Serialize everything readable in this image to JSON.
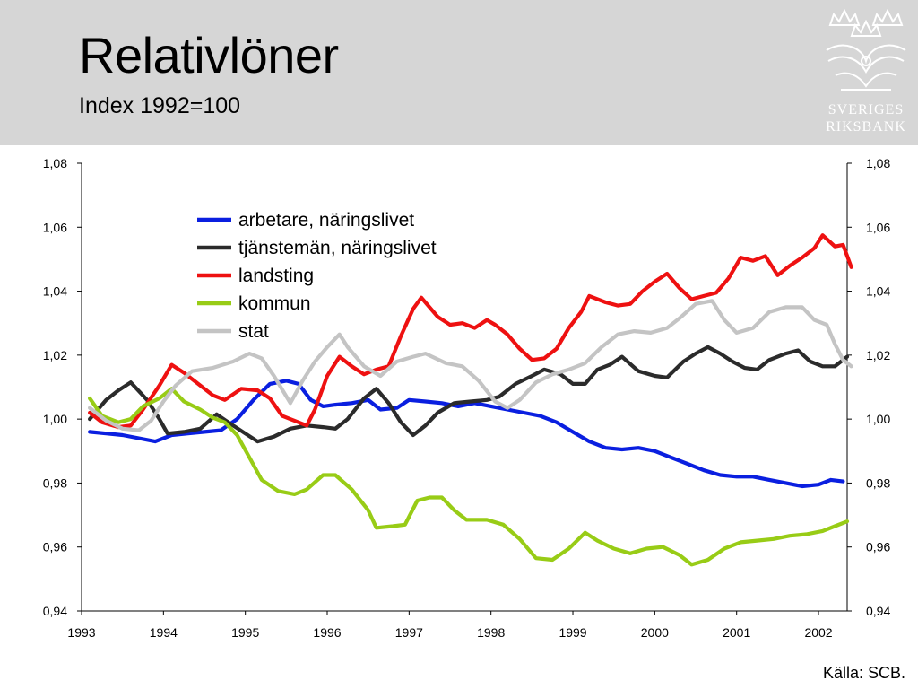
{
  "header": {
    "title": "Relativlöner",
    "subtitle": "Index 1992=100"
  },
  "logo": {
    "icon": "riksbank-crown-emblem-icon",
    "line1": "SVERIGES",
    "line2": "RIKSBANK"
  },
  "source": "Källa: SCB.",
  "colors": {
    "header_bg": "#d6d6d6",
    "blue": "#0a1fe0",
    "dark": "#2b2b2b",
    "red": "#ee1111",
    "green": "#98cc16",
    "grey": "#c4c4c4"
  },
  "chart_data": {
    "type": "line",
    "title": "",
    "xlabel": "",
    "ylabel": "",
    "xlim": [
      1993,
      2002.35
    ],
    "ylim": [
      0.94,
      1.08
    ],
    "x_ticks": [
      "1993",
      "1994",
      "1995",
      "1996",
      "1997",
      "1998",
      "1999",
      "2000",
      "2001",
      "2002"
    ],
    "y_ticks": [
      "0,94",
      "0,96",
      "0,98",
      "1,00",
      "1,02",
      "1,04",
      "1,06",
      "1,08"
    ],
    "dual_y_axis": true,
    "grid": false,
    "legend_position": "top-left",
    "series": [
      {
        "name": "arbetare, näringslivet",
        "color": "#0a1fe0",
        "points": [
          [
            1993.1,
            0.996
          ],
          [
            1993.3,
            0.9955
          ],
          [
            1993.5,
            0.995
          ],
          [
            1993.7,
            0.994
          ],
          [
            1993.9,
            0.993
          ],
          [
            1994.1,
            0.995
          ],
          [
            1994.3,
            0.9955
          ],
          [
            1994.5,
            0.996
          ],
          [
            1994.7,
            0.9965
          ],
          [
            1994.9,
            1.0
          ],
          [
            1995.1,
            1.006
          ],
          [
            1995.3,
            1.011
          ],
          [
            1995.5,
            1.012
          ],
          [
            1995.65,
            1.011
          ],
          [
            1995.8,
            1.006
          ],
          [
            1995.95,
            1.004
          ],
          [
            1996.1,
            1.0045
          ],
          [
            1996.3,
            1.005
          ],
          [
            1996.5,
            1.006
          ],
          [
            1996.65,
            1.003
          ],
          [
            1996.85,
            1.0035
          ],
          [
            1997.0,
            1.006
          ],
          [
            1997.2,
            1.0055
          ],
          [
            1997.4,
            1.005
          ],
          [
            1997.6,
            1.004
          ],
          [
            1997.8,
            1.005
          ],
          [
            1998.0,
            1.004
          ],
          [
            1998.2,
            1.003
          ],
          [
            1998.4,
            1.002
          ],
          [
            1998.6,
            1.001
          ],
          [
            1998.8,
            0.999
          ],
          [
            1999.0,
            0.996
          ],
          [
            1999.2,
            0.993
          ],
          [
            1999.4,
            0.991
          ],
          [
            1999.6,
            0.9905
          ],
          [
            1999.8,
            0.991
          ],
          [
            2000.0,
            0.99
          ],
          [
            2000.2,
            0.988
          ],
          [
            2000.4,
            0.986
          ],
          [
            2000.6,
            0.984
          ],
          [
            2000.8,
            0.9825
          ],
          [
            2001.0,
            0.982
          ],
          [
            2001.2,
            0.982
          ],
          [
            2001.4,
            0.981
          ],
          [
            2001.6,
            0.98
          ],
          [
            2001.8,
            0.979
          ],
          [
            2002.0,
            0.9795
          ],
          [
            2002.15,
            0.981
          ],
          [
            2002.3,
            0.9805
          ]
        ]
      },
      {
        "name": "tjänstemän, näringslivet",
        "color": "#2b2b2b",
        "points": [
          [
            1993.1,
            1.0
          ],
          [
            1993.3,
            1.006
          ],
          [
            1993.45,
            1.009
          ],
          [
            1993.6,
            1.0115
          ],
          [
            1993.8,
            1.006
          ],
          [
            1993.95,
            1.0
          ],
          [
            1994.05,
            0.9955
          ],
          [
            1994.25,
            0.996
          ],
          [
            1994.45,
            0.997
          ],
          [
            1994.65,
            1.0015
          ],
          [
            1994.85,
            0.998
          ],
          [
            1995.0,
            0.9955
          ],
          [
            1995.15,
            0.993
          ],
          [
            1995.35,
            0.9945
          ],
          [
            1995.55,
            0.997
          ],
          [
            1995.75,
            0.998
          ],
          [
            1995.95,
            0.9975
          ],
          [
            1996.1,
            0.997
          ],
          [
            1996.25,
            1.0
          ],
          [
            1996.45,
            1.0065
          ],
          [
            1996.6,
            1.0095
          ],
          [
            1996.75,
            1.005
          ],
          [
            1996.9,
            0.999
          ],
          [
            1997.05,
            0.995
          ],
          [
            1997.2,
            0.998
          ],
          [
            1997.35,
            1.002
          ],
          [
            1997.55,
            1.005
          ],
          [
            1997.75,
            1.0055
          ],
          [
            1997.95,
            1.006
          ],
          [
            1998.1,
            1.007
          ],
          [
            1998.3,
            1.011
          ],
          [
            1998.5,
            1.0135
          ],
          [
            1998.65,
            1.0155
          ],
          [
            1998.85,
            1.014
          ],
          [
            1999.0,
            1.011
          ],
          [
            1999.15,
            1.011
          ],
          [
            1999.3,
            1.0155
          ],
          [
            1999.45,
            1.017
          ],
          [
            1999.6,
            1.0195
          ],
          [
            1999.8,
            1.015
          ],
          [
            2000.0,
            1.0135
          ],
          [
            2000.15,
            1.013
          ],
          [
            2000.35,
            1.018
          ],
          [
            2000.5,
            1.0205
          ],
          [
            2000.65,
            1.0225
          ],
          [
            2000.8,
            1.0205
          ],
          [
            2000.95,
            1.018
          ],
          [
            2001.1,
            1.016
          ],
          [
            2001.25,
            1.0155
          ],
          [
            2001.4,
            1.0185
          ],
          [
            2001.6,
            1.0205
          ],
          [
            2001.75,
            1.0215
          ],
          [
            2001.9,
            1.018
          ],
          [
            2002.05,
            1.0165
          ],
          [
            2002.2,
            1.0165
          ],
          [
            2002.35,
            1.0195
          ]
        ]
      },
      {
        "name": "landsting",
        "color": "#ee1111",
        "points": [
          [
            1993.1,
            1.002
          ],
          [
            1993.25,
            0.999
          ],
          [
            1993.45,
            0.9975
          ],
          [
            1993.6,
            0.998
          ],
          [
            1993.75,
            1.003
          ],
          [
            1993.95,
            1.0105
          ],
          [
            1994.1,
            1.017
          ],
          [
            1994.25,
            1.0145
          ],
          [
            1994.45,
            1.0105
          ],
          [
            1994.6,
            1.0075
          ],
          [
            1994.75,
            1.006
          ],
          [
            1994.95,
            1.0095
          ],
          [
            1995.15,
            1.009
          ],
          [
            1995.3,
            1.0065
          ],
          [
            1995.45,
            1.001
          ],
          [
            1995.6,
            0.9995
          ],
          [
            1995.75,
            0.998
          ],
          [
            1995.85,
            1.003
          ],
          [
            1996.0,
            1.0135
          ],
          [
            1996.15,
            1.0195
          ],
          [
            1996.3,
            1.0165
          ],
          [
            1996.45,
            1.014
          ],
          [
            1996.6,
            1.0155
          ],
          [
            1996.75,
            1.0165
          ],
          [
            1996.9,
            1.026
          ],
          [
            1997.05,
            1.0345
          ],
          [
            1997.15,
            1.038
          ],
          [
            1997.35,
            1.032
          ],
          [
            1997.5,
            1.0295
          ],
          [
            1997.65,
            1.03
          ],
          [
            1997.8,
            1.0285
          ],
          [
            1997.95,
            1.031
          ],
          [
            1998.05,
            1.0295
          ],
          [
            1998.2,
            1.0265
          ],
          [
            1998.35,
            1.022
          ],
          [
            1998.5,
            1.0185
          ],
          [
            1998.65,
            1.019
          ],
          [
            1998.8,
            1.022
          ],
          [
            1998.95,
            1.0285
          ],
          [
            1999.1,
            1.0335
          ],
          [
            1999.2,
            1.0385
          ],
          [
            1999.4,
            1.0365
          ],
          [
            1999.55,
            1.0355
          ],
          [
            1999.7,
            1.036
          ],
          [
            1999.85,
            1.04
          ],
          [
            2000.0,
            1.043
          ],
          [
            2000.15,
            1.0455
          ],
          [
            2000.3,
            1.041
          ],
          [
            2000.45,
            1.0375
          ],
          [
            2000.6,
            1.0385
          ],
          [
            2000.75,
            1.0395
          ],
          [
            2000.9,
            1.044
          ],
          [
            2001.05,
            1.0505
          ],
          [
            2001.2,
            1.0495
          ],
          [
            2001.35,
            1.051
          ],
          [
            2001.5,
            1.045
          ],
          [
            2001.65,
            1.048
          ],
          [
            2001.8,
            1.0505
          ],
          [
            2001.95,
            1.0535
          ],
          [
            2002.05,
            1.0575
          ],
          [
            2002.2,
            1.054
          ],
          [
            2002.3,
            1.0545
          ],
          [
            2002.4,
            1.0475
          ]
        ]
      },
      {
        "name": "kommun",
        "color": "#98cc16",
        "points": [
          [
            1993.1,
            1.0065
          ],
          [
            1993.25,
            1.001
          ],
          [
            1993.45,
            0.999
          ],
          [
            1993.6,
            1.0
          ],
          [
            1993.75,
            1.004
          ],
          [
            1993.95,
            1.0065
          ],
          [
            1994.1,
            1.0095
          ],
          [
            1994.25,
            1.0055
          ],
          [
            1994.45,
            1.003
          ],
          [
            1994.6,
            1.0005
          ],
          [
            1994.75,
            0.999
          ],
          [
            1994.9,
            0.995
          ],
          [
            1995.05,
            0.988
          ],
          [
            1995.2,
            0.981
          ],
          [
            1995.4,
            0.9775
          ],
          [
            1995.6,
            0.9765
          ],
          [
            1995.75,
            0.978
          ],
          [
            1995.95,
            0.9825
          ],
          [
            1996.1,
            0.9825
          ],
          [
            1996.3,
            0.978
          ],
          [
            1996.5,
            0.9715
          ],
          [
            1996.6,
            0.966
          ],
          [
            1996.8,
            0.9665
          ],
          [
            1996.95,
            0.967
          ],
          [
            1997.1,
            0.9745
          ],
          [
            1997.25,
            0.9755
          ],
          [
            1997.4,
            0.9755
          ],
          [
            1997.55,
            0.9715
          ],
          [
            1997.7,
            0.9685
          ],
          [
            1997.95,
            0.9685
          ],
          [
            1998.15,
            0.967
          ],
          [
            1998.35,
            0.9625
          ],
          [
            1998.55,
            0.9565
          ],
          [
            1998.75,
            0.956
          ],
          [
            1998.95,
            0.9595
          ],
          [
            1999.15,
            0.9645
          ],
          [
            1999.3,
            0.962
          ],
          [
            1999.5,
            0.9595
          ],
          [
            1999.7,
            0.958
          ],
          [
            1999.9,
            0.9595
          ],
          [
            2000.1,
            0.96
          ],
          [
            2000.3,
            0.9575
          ],
          [
            2000.45,
            0.9545
          ],
          [
            2000.65,
            0.956
          ],
          [
            2000.85,
            0.9595
          ],
          [
            2001.05,
            0.9615
          ],
          [
            2001.25,
            0.962
          ],
          [
            2001.45,
            0.9625
          ],
          [
            2001.65,
            0.9635
          ],
          [
            2001.85,
            0.964
          ],
          [
            2002.05,
            0.965
          ],
          [
            2002.2,
            0.9665
          ],
          [
            2002.35,
            0.968
          ]
        ]
      },
      {
        "name": "stat",
        "color": "#c4c4c4",
        "points": [
          [
            1993.1,
            1.0035
          ],
          [
            1993.3,
            0.9995
          ],
          [
            1993.5,
            0.997
          ],
          [
            1993.7,
            0.9965
          ],
          [
            1993.85,
            0.9995
          ],
          [
            1994.0,
            1.0055
          ],
          [
            1994.15,
            1.0105
          ],
          [
            1994.35,
            1.015
          ],
          [
            1994.6,
            1.016
          ],
          [
            1994.85,
            1.018
          ],
          [
            1995.05,
            1.0205
          ],
          [
            1995.2,
            1.019
          ],
          [
            1995.35,
            1.0135
          ],
          [
            1995.55,
            1.005
          ],
          [
            1995.7,
            1.012
          ],
          [
            1995.85,
            1.018
          ],
          [
            1996.0,
            1.0225
          ],
          [
            1996.15,
            1.0265
          ],
          [
            1996.25,
            1.0225
          ],
          [
            1996.45,
            1.0165
          ],
          [
            1996.65,
            1.0135
          ],
          [
            1996.85,
            1.018
          ],
          [
            1997.05,
            1.0195
          ],
          [
            1997.2,
            1.0205
          ],
          [
            1997.45,
            1.0175
          ],
          [
            1997.65,
            1.0165
          ],
          [
            1997.85,
            1.012
          ],
          [
            1998.05,
            1.0055
          ],
          [
            1998.2,
            1.0035
          ],
          [
            1998.35,
            1.006
          ],
          [
            1998.55,
            1.0115
          ],
          [
            1998.75,
            1.014
          ],
          [
            1998.95,
            1.0155
          ],
          [
            1999.15,
            1.0175
          ],
          [
            1999.35,
            1.0225
          ],
          [
            1999.55,
            1.0265
          ],
          [
            1999.75,
            1.0275
          ],
          [
            1999.95,
            1.027
          ],
          [
            2000.15,
            1.0285
          ],
          [
            2000.3,
            1.0315
          ],
          [
            2000.5,
            1.036
          ],
          [
            2000.7,
            1.037
          ],
          [
            2000.85,
            1.031
          ],
          [
            2001.0,
            1.027
          ],
          [
            2001.2,
            1.0285
          ],
          [
            2001.4,
            1.0335
          ],
          [
            2001.6,
            1.035
          ],
          [
            2001.8,
            1.035
          ],
          [
            2001.95,
            1.031
          ],
          [
            2002.1,
            1.0295
          ],
          [
            2002.2,
            1.0235
          ],
          [
            2002.3,
            1.0185
          ],
          [
            2002.4,
            1.0165
          ]
        ]
      }
    ]
  }
}
